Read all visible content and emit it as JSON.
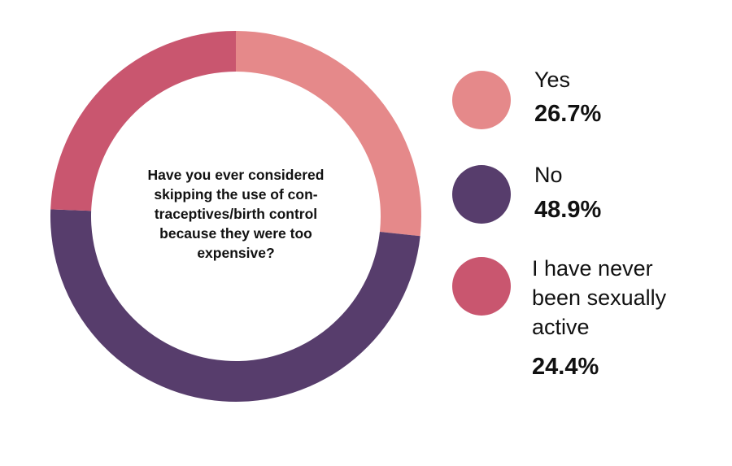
{
  "chart_data": {
    "type": "pie",
    "donut": true,
    "title": "Have you ever considered\nskipping the use of con-\ntraceptives/birth control\nbecause they were too\nexpensive?",
    "categories": [
      "Yes",
      "No",
      "I have never\nbeen sexually\nactive"
    ],
    "values": [
      26.7,
      48.9,
      24.4
    ],
    "value_labels": [
      "26.7%",
      "48.9%",
      "24.4%"
    ],
    "colors": [
      "#e5898a",
      "#573d6c",
      "#c9566f"
    ],
    "legend_position": "right"
  }
}
